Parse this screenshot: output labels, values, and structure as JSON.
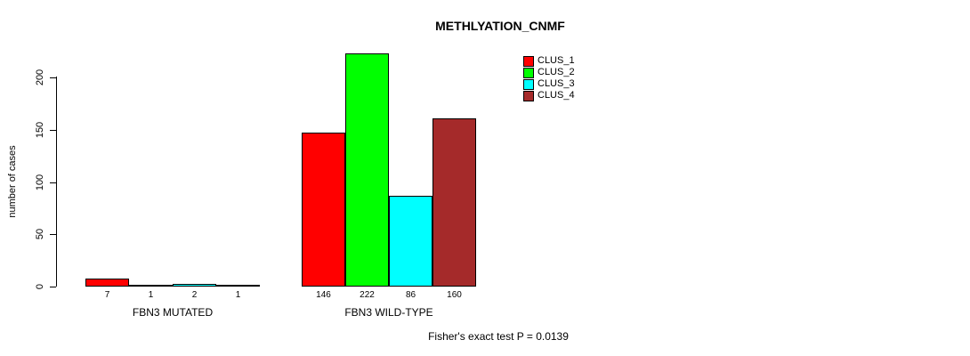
{
  "chart_data": {
    "type": "bar",
    "title": "METHLYATION_CNMF",
    "ylabel": "number of cases",
    "xlabel": "",
    "yticks": [
      0,
      50,
      100,
      150,
      200
    ],
    "ylim": [
      0,
      235
    ],
    "grid": false,
    "legend_position": "top-right-of-plot",
    "categories": [
      "FBN3 MUTATED",
      "FBN3 WILD-TYPE"
    ],
    "series": [
      {
        "name": "CLUS_1",
        "color": "#FF0000",
        "values": [
          7,
          146
        ]
      },
      {
        "name": "CLUS_2",
        "color": "#00FF00",
        "values": [
          1,
          222
        ]
      },
      {
        "name": "CLUS_3",
        "color": "#00FFFF",
        "values": [
          2,
          86
        ]
      },
      {
        "name": "CLUS_4",
        "color": "#A52A2A",
        "values": [
          1,
          160
        ]
      }
    ],
    "bar_labels_shown": true,
    "annotation": "Fisher's exact test P = 0.0139",
    "axis_color": "#000000",
    "background_color": "#FFFFFF"
  }
}
